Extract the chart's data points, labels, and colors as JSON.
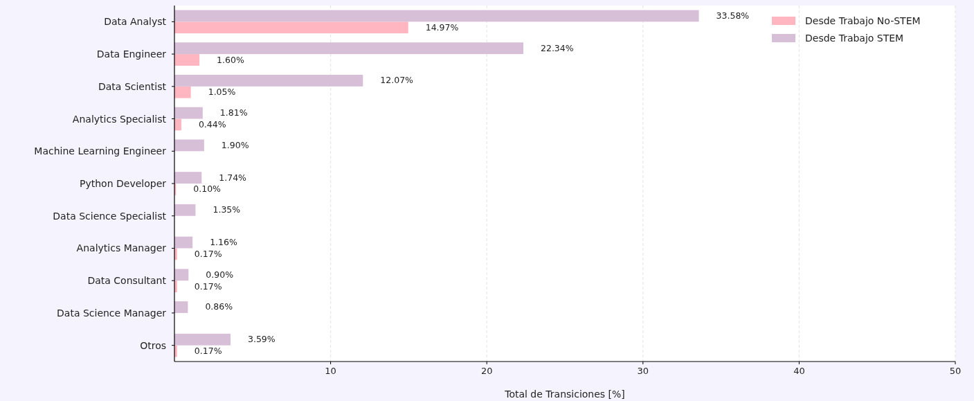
{
  "chart_data": {
    "type": "bar",
    "orientation": "horizontal",
    "xlabel": "Total de Transiciones [%]",
    "categories": [
      "Data Analyst",
      "Data Engineer",
      "Data Scientist",
      "Analytics Specialist",
      "Machine Learning Engineer",
      "Python Developer",
      "Data Science Specialist",
      "Analytics Manager",
      "Data Consultant",
      "Data Science Manager",
      "Otros"
    ],
    "series": [
      {
        "name": "Desde Trabajo No-STEM",
        "color": "#ffb6c1",
        "values": [
          14.97,
          1.6,
          1.05,
          0.44,
          null,
          0.1,
          null,
          0.17,
          0.17,
          null,
          0.17
        ],
        "value_labels": [
          "14.97%",
          "1.60%",
          "1.05%",
          "0.44%",
          null,
          "0.10%",
          null,
          "0.17%",
          "0.17%",
          null,
          "0.17%"
        ]
      },
      {
        "name": "Desde Trabajo STEM",
        "color": "#d8bfd8",
        "values": [
          33.58,
          22.34,
          12.07,
          1.81,
          1.9,
          1.74,
          1.35,
          1.16,
          0.9,
          0.86,
          3.59
        ],
        "value_labels": [
          "33.58%",
          "22.34%",
          "12.07%",
          "1.81%",
          "1.90%",
          "1.74%",
          "1.35%",
          "1.16%",
          "0.90%",
          "0.86%",
          "3.59%"
        ]
      }
    ],
    "xlim": [
      0,
      50
    ],
    "xticks": [
      10,
      20,
      30,
      40,
      50
    ],
    "grid": "x",
    "legend": "top right"
  }
}
